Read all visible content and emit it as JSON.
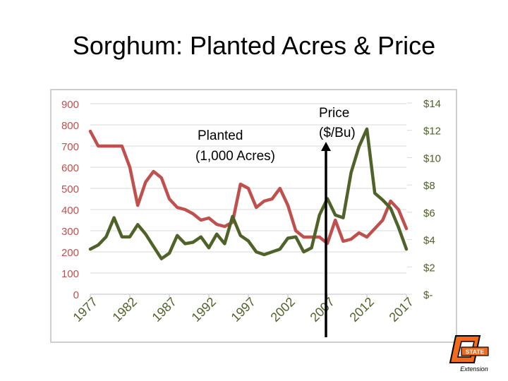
{
  "slide": {
    "title": "Sorghum: Planted Acres & Price"
  },
  "chart_data": {
    "type": "line",
    "title": "Sorghum: Planted Acres & Price",
    "x": [
      1977,
      1978,
      1979,
      1980,
      1981,
      1982,
      1983,
      1984,
      1985,
      1986,
      1987,
      1988,
      1989,
      1990,
      1991,
      1992,
      1993,
      1994,
      1995,
      1996,
      1997,
      1998,
      1999,
      2000,
      2001,
      2002,
      2003,
      2004,
      2005,
      2006,
      2007,
      2008,
      2009,
      2010,
      2011,
      2012,
      2013,
      2014,
      2015,
      2016,
      2017
    ],
    "x_ticks": [
      "1977",
      "1982",
      "1987",
      "1992",
      "1997",
      "2002",
      "2007",
      "2012",
      "2017"
    ],
    "ylim_left": [
      0,
      900
    ],
    "y_ticks_left": [
      "900",
      "800",
      "700",
      "600",
      "500",
      "400",
      "300",
      "200",
      "100",
      "0"
    ],
    "ylim_right": [
      0,
      14
    ],
    "y_ticks_right": [
      "$14",
      "$12",
      "$10",
      "$8",
      "$6",
      "$4",
      "$2",
      "$-"
    ],
    "series": [
      {
        "name": "Planted (1,000 Acres)",
        "axis": "left",
        "color": "#c0504d",
        "values": [
          770,
          700,
          700,
          700,
          700,
          600,
          420,
          530,
          580,
          550,
          450,
          410,
          400,
          380,
          350,
          360,
          330,
          320,
          340,
          520,
          500,
          410,
          440,
          450,
          500,
          420,
          300,
          270,
          270,
          270,
          240,
          350,
          250,
          260,
          290,
          270,
          310,
          350,
          440,
          400,
          310
        ]
      },
      {
        "name": "Price ($/Bu)",
        "axis": "right",
        "color": "#4f6228",
        "values": [
          3.3,
          3.6,
          4.2,
          5.6,
          4.2,
          4.2,
          5.1,
          4.4,
          3.5,
          2.6,
          3.0,
          4.3,
          3.7,
          3.8,
          4.2,
          3.4,
          4.4,
          3.7,
          5.7,
          4.3,
          3.9,
          3.1,
          2.9,
          3.1,
          3.3,
          4.1,
          4.2,
          3.1,
          3.4,
          5.8,
          7.0,
          5.8,
          5.6,
          8.9,
          10.8,
          12.1,
          7.4,
          6.9,
          6.3,
          4.9,
          3.3
        ]
      }
    ],
    "annotations": {
      "planted_line1": "Planted",
      "planted_line2": "(1,000 Acres)",
      "price_line1": "Price",
      "price_line2": "($/Bu)"
    },
    "marker_year": 2007,
    "grid": "horizontal",
    "legend": "none"
  },
  "colors": {
    "plot_border": "#bfbfbf",
    "left_axis_text": "#c0504d",
    "right_axis_text": "#4f6228",
    "arrow": "#000000",
    "gridline": "#d9d9d9"
  },
  "logo": {
    "text_state": "STATE",
    "text_extension": "Extension",
    "icon": "oklahoma-state-extension-logo"
  }
}
